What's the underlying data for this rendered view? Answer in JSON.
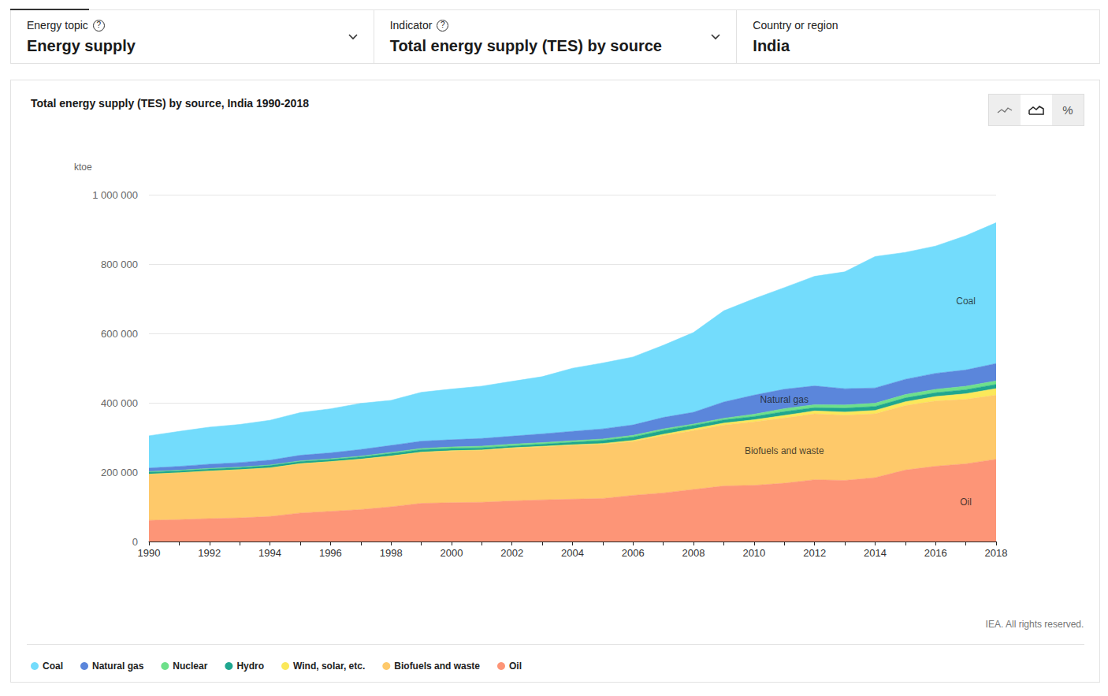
{
  "page": {
    "help_icon": "?",
    "selectors": [
      {
        "label": "Energy topic",
        "value": "Energy supply",
        "help": true,
        "dropdown": true
      },
      {
        "label": "Indicator",
        "value": "Total energy supply (TES) by source",
        "help": true,
        "dropdown": true
      },
      {
        "label": "Country or region",
        "value": "India",
        "help": false,
        "dropdown": false
      }
    ],
    "percent_button": "%",
    "credit": "IEA. All rights reserved."
  },
  "chart_data": {
    "type": "area",
    "stacked": true,
    "title": "Total energy supply (TES) by source, India 1990-2018",
    "ylabel": "ktoe",
    "categories": [
      "1990",
      null,
      "1992",
      null,
      "1994",
      null,
      "1996",
      null,
      "1998",
      null,
      "2000",
      null,
      "2002",
      null,
      "2004",
      null,
      "2006",
      null,
      "2008",
      null,
      "2010",
      null,
      "2012",
      null,
      "2014",
      null,
      "2016",
      null,
      "2018"
    ],
    "ylim": [
      0,
      1000000
    ],
    "yticks": [
      0,
      {
        "value": 200000,
        "label": "200 000"
      },
      {
        "value": 400000,
        "label": "400 000"
      },
      {
        "value": 600000,
        "label": "600 000"
      },
      {
        "value": 800000,
        "label": "800 000"
      },
      {
        "value": 1000000,
        "label": "1 000 000"
      }
    ],
    "grid": true,
    "legend": "bottom",
    "series": [
      {
        "name": "Coal",
        "color": "#73dcfc",
        "values": [
          93000,
          101000,
          107000,
          110000,
          115000,
          123000,
          127000,
          133000,
          130000,
          141000,
          146000,
          151000,
          158000,
          165000,
          182000,
          190000,
          196000,
          208000,
          230000,
          263000,
          278000,
          293000,
          316000,
          337000,
          379000,
          366000,
          367000,
          387000,
          406000
        ]
      },
      {
        "name": "Natural gas",
        "color": "#5b86db",
        "values": [
          10000,
          11000,
          12000,
          13000,
          14000,
          16000,
          17000,
          19000,
          20000,
          21000,
          21000,
          22000,
          23000,
          25000,
          27000,
          29000,
          30000,
          33000,
          34000,
          47000,
          55000,
          56000,
          54000,
          47000,
          44000,
          44000,
          46000,
          47000,
          50000
        ]
      },
      {
        "name": "Nuclear",
        "color": "#6ee08a",
        "values": [
          1600,
          1400,
          1800,
          1400,
          1400,
          2000,
          2400,
          2600,
          3300,
          3500,
          4400,
          5000,
          5000,
          4800,
          4400,
          4500,
          4900,
          4800,
          3800,
          4800,
          6800,
          8500,
          8600,
          9000,
          9400,
          9700,
          9900,
          10000,
          10200
        ]
      },
      {
        "name": "Hydro",
        "color": "#1fa68f",
        "values": [
          6200,
          6200,
          6000,
          6100,
          7100,
          6400,
          5900,
          6300,
          7200,
          7100,
          6400,
          6100,
          5500,
          5900,
          7200,
          8600,
          9800,
          10700,
          9900,
          9000,
          9200,
          11100,
          9500,
          11400,
          11300,
          11000,
          11000,
          11700,
          12000
        ]
      },
      {
        "name": "Wind, solar, etc.",
        "color": "#fbe85a",
        "values": [
          0,
          0,
          0,
          0,
          100,
          200,
          300,
          400,
          500,
          600,
          700,
          900,
          1200,
          1600,
          2000,
          2600,
          3400,
          4200,
          5000,
          5500,
          6000,
          7500,
          8500,
          9200,
          10000,
          11000,
          13000,
          16000,
          19000
        ]
      },
      {
        "name": "Biofuels and waste",
        "color": "#fec96a",
        "values": [
          133000,
          135000,
          137000,
          139000,
          140000,
          142000,
          143000,
          145000,
          146000,
          147000,
          149000,
          150000,
          152000,
          153000,
          155000,
          156000,
          155000,
          165000,
          170000,
          176000,
          183000,
          188000,
          190000,
          188000,
          184000,
          186000,
          188000,
          186000,
          185000
        ]
      },
      {
        "name": "Oil",
        "color": "#fd9577",
        "values": [
          61000,
          63000,
          66000,
          68000,
          72000,
          82000,
          87000,
          92000,
          100000,
          110000,
          112000,
          113000,
          117000,
          120000,
          122000,
          124000,
          133000,
          140000,
          150000,
          160000,
          162000,
          168000,
          178000,
          176000,
          184000,
          206000,
          217000,
          224000,
          237000
        ]
      }
    ],
    "annotations": [
      {
        "text": "Coal",
        "x": 2017,
        "y": 693000
      },
      {
        "text": "Natural gas",
        "x": 2011,
        "y": 409000
      },
      {
        "text": "Biofuels and waste",
        "x": 2011,
        "y": 261000
      },
      {
        "text": "Oil",
        "x": 2017,
        "y": 114000
      }
    ]
  }
}
